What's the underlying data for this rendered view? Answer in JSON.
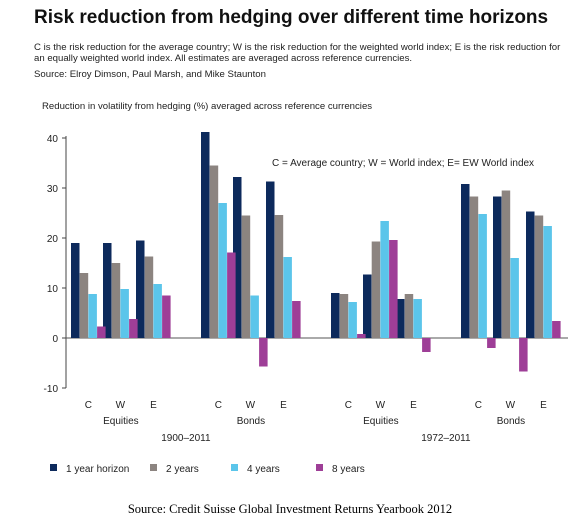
{
  "chart_data": {
    "type": "bar",
    "title": "Risk reduction from hedging over different time horizons",
    "subtitle": "C is the risk reduction for the average country; W is the risk reduction for the weighted world index; E is the risk reduction for an equally weighted world index.  All estimates are averaged across reference currencies.",
    "source": "Source: Elroy Dimson, Paul Marsh, and Mike Staunton",
    "ylabel": "Reduction in volatility from hedging (%) averaged across reference currencies",
    "ylim": [
      -10,
      40
    ],
    "yticks": [
      -10,
      0,
      10,
      20,
      30,
      40
    ],
    "grid": false,
    "annotation": "C = Average country; W = World index; E= EW World index",
    "legend_position": "bottom",
    "categories": [
      "C",
      "W",
      "E",
      "C",
      "W",
      "E",
      "C",
      "W",
      "E",
      "C",
      "W",
      "E"
    ],
    "asset_groups": [
      {
        "label": "Equities",
        "categories": [
          "C",
          "W",
          "E"
        ]
      },
      {
        "label": "Bonds",
        "categories": [
          "C",
          "W",
          "E"
        ]
      },
      {
        "label": "Equities",
        "categories": [
          "C",
          "W",
          "E"
        ]
      },
      {
        "label": "Bonds",
        "categories": [
          "C",
          "W",
          "E"
        ]
      }
    ],
    "periods": [
      {
        "label": "1900–2011",
        "groups": 2
      },
      {
        "label": "1972–2011",
        "groups": 2
      }
    ],
    "series": [
      {
        "name": "1 year horizon",
        "color": "#0d2a5c",
        "values": [
          19,
          19,
          19.5,
          41.2,
          32.2,
          31.3,
          9,
          12.7,
          7.8,
          30.8,
          28.3,
          25.3
        ]
      },
      {
        "name": "2 years",
        "color": "#8c8480",
        "values": [
          13,
          15,
          16.3,
          34.5,
          24.5,
          24.6,
          8.8,
          19.3,
          8.8,
          28.3,
          29.5,
          24.5
        ]
      },
      {
        "name": "4 years",
        "color": "#5bc5ea",
        "values": [
          8.8,
          9.8,
          10.8,
          27,
          8.5,
          16.2,
          7.2,
          23.4,
          7.8,
          24.8,
          16,
          22.4
        ]
      },
      {
        "name": "8 years",
        "color": "#9e3e97",
        "values": [
          2.3,
          3.8,
          8.5,
          17.1,
          -5.7,
          7.4,
          0.8,
          19.6,
          -2.8,
          -2,
          -6.7,
          3.4
        ]
      }
    ]
  },
  "footer": "Source: Credit Suisse Global Investment Returns Yearbook 2012"
}
